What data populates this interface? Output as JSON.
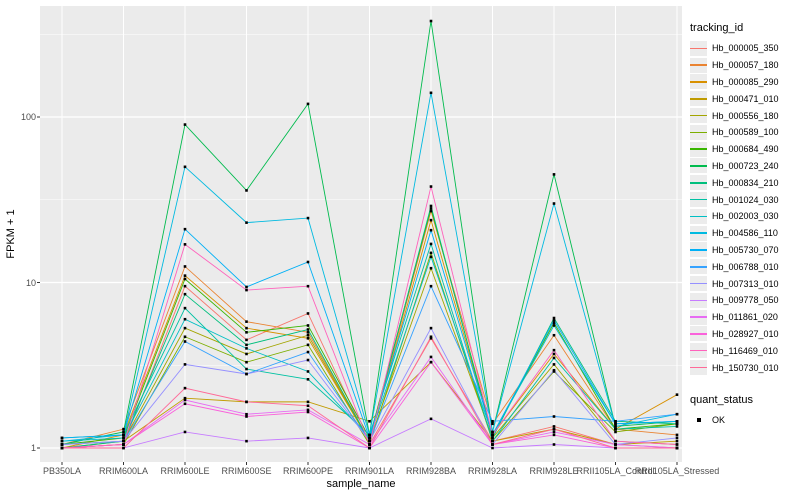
{
  "chart_data": {
    "type": "line",
    "title": "",
    "xlabel": "sample_name",
    "ylabel": "FPKM + 1",
    "yscale": "log10",
    "yticks": [
      1,
      10,
      100
    ],
    "ylim": [
      0.85,
      460
    ],
    "grid": "white major and minor gridlines on gray panel",
    "legend_position": "right",
    "point_marker": "small black square",
    "categories": [
      "PB350LA",
      "RRIM600LA",
      "RRIM600LE",
      "RRIM600SE",
      "RRIM600PE",
      "RRIM901LA",
      "RRIM928BA",
      "RRIM928LA",
      "RRIM928LE",
      "RRII105LA_Control",
      "RRII105LA_Stressed"
    ],
    "series": [
      {
        "name": "Hb_000005_350",
        "color": "#F8766D",
        "values": [
          1.0,
          1.05,
          9.5,
          4.5,
          6.5,
          1.05,
          4.6,
          1.1,
          1.35,
          1.05,
          1.0
        ]
      },
      {
        "name": "Hb_000057_180",
        "color": "#EA8331",
        "values": [
          1.05,
          1.3,
          12.5,
          5.8,
          5.0,
          1.1,
          27,
          1.4,
          4.8,
          1.3,
          1.2
        ]
      },
      {
        "name": "Hb_000085_290",
        "color": "#D89000",
        "values": [
          1.0,
          1.2,
          11,
          5.3,
          4.6,
          1.1,
          23.8,
          1.2,
          3.7,
          1.3,
          2.1
        ]
      },
      {
        "name": "Hb_000471_010",
        "color": "#C09B00",
        "values": [
          1.0,
          1.1,
          2.0,
          1.9,
          1.9,
          1.45,
          3.3,
          1.1,
          1.3,
          1.05,
          1.1
        ]
      },
      {
        "name": "Hb_000556_180",
        "color": "#A3A500",
        "values": [
          1.05,
          1.1,
          5.3,
          3.7,
          4.8,
          1.1,
          12.2,
          1.15,
          3.2,
          1.1,
          1.05
        ]
      },
      {
        "name": "Hb_000589_100",
        "color": "#7CAE00",
        "values": [
          1.0,
          1.05,
          4.7,
          3.3,
          4.2,
          1.05,
          15.1,
          1.1,
          2.9,
          1.25,
          1.4
        ]
      },
      {
        "name": "Hb_000684_490",
        "color": "#39B600",
        "values": [
          1.05,
          1.15,
          10.5,
          5.0,
          5.5,
          1.15,
          28,
          1.2,
          5.7,
          1.3,
          1.4
        ]
      },
      {
        "name": "Hb_000723_240",
        "color": "#00BB4E",
        "values": [
          1.05,
          1.25,
          90,
          36,
          120,
          1.2,
          380,
          1.25,
          45,
          1.35,
          1.45
        ]
      },
      {
        "name": "Hb_000834_210",
        "color": "#00BF7D",
        "values": [
          1.0,
          1.1,
          8.5,
          4.2,
          5.2,
          1.1,
          29,
          1.15,
          6.1,
          1.45,
          1.4
        ]
      },
      {
        "name": "Hb_001024_030",
        "color": "#00C1A3",
        "values": [
          1.15,
          1.2,
          7.0,
          3.0,
          2.6,
          1.2,
          17.1,
          1.1,
          3.5,
          1.3,
          1.35
        ]
      },
      {
        "name": "Hb_002003_030",
        "color": "#00BFC4",
        "values": [
          1.1,
          1.15,
          6.0,
          4.0,
          2.9,
          1.15,
          14.3,
          1.2,
          5.5,
          1.4,
          1.45
        ]
      },
      {
        "name": "Hb_004586_110",
        "color": "#00BAE0",
        "values": [
          1.1,
          1.2,
          50,
          23,
          24.5,
          1.2,
          140,
          1.25,
          30,
          1.35,
          1.6
        ]
      },
      {
        "name": "Hb_005730_070",
        "color": "#00B0F6",
        "values": [
          1.15,
          1.2,
          21,
          9.4,
          13.3,
          1.15,
          20.7,
          1.2,
          5.9,
          1.4,
          1.45
        ]
      },
      {
        "name": "Hb_006788_010",
        "color": "#35A2FF",
        "values": [
          1.05,
          1.1,
          4.4,
          2.8,
          3.8,
          1.1,
          9.5,
          1.45,
          1.55,
          1.45,
          1.6
        ]
      },
      {
        "name": "Hb_007313_010",
        "color": "#9590FF",
        "values": [
          1.05,
          1.1,
          3.2,
          2.8,
          3.4,
          1.1,
          5.3,
          1.05,
          2.95,
          1.05,
          1.15
        ]
      },
      {
        "name": "Hb_009778_050",
        "color": "#C77CFF",
        "values": [
          1.0,
          1.0,
          1.25,
          1.1,
          1.15,
          1.0,
          1.5,
          1.0,
          1.05,
          1.0,
          1.0
        ]
      },
      {
        "name": "Hb_011861_020",
        "color": "#E76BF3",
        "values": [
          1.0,
          1.05,
          1.95,
          1.6,
          1.7,
          1.05,
          3.55,
          1.05,
          1.25,
          1.05,
          1.0
        ]
      },
      {
        "name": "Hb_028927_010",
        "color": "#FA62DB",
        "values": [
          1.0,
          1.05,
          1.85,
          1.55,
          1.65,
          1.0,
          3.3,
          1.05,
          1.2,
          1.0,
          1.0
        ]
      },
      {
        "name": "Hb_116469_010",
        "color": "#FF62BC",
        "values": [
          1.0,
          1.05,
          17,
          9.0,
          9.5,
          1.05,
          38,
          1.2,
          3.9,
          1.1,
          1.05
        ]
      },
      {
        "name": "Hb_150730_010",
        "color": "#FF6A98",
        "values": [
          1.0,
          1.0,
          2.3,
          1.9,
          1.8,
          1.0,
          4.7,
          1.05,
          1.3,
          1.0,
          1.0
        ]
      }
    ]
  },
  "legend": {
    "tracking_title": "tracking_id",
    "quant_title": "quant_status",
    "quant_items": [
      {
        "label": "OK",
        "marker": "black-square"
      }
    ]
  },
  "panel": {
    "background": "#EBEBEB",
    "gridline_color": "#FFFFFF",
    "tick_color": "#333333",
    "tick_label_color": "#4D4D4D"
  }
}
